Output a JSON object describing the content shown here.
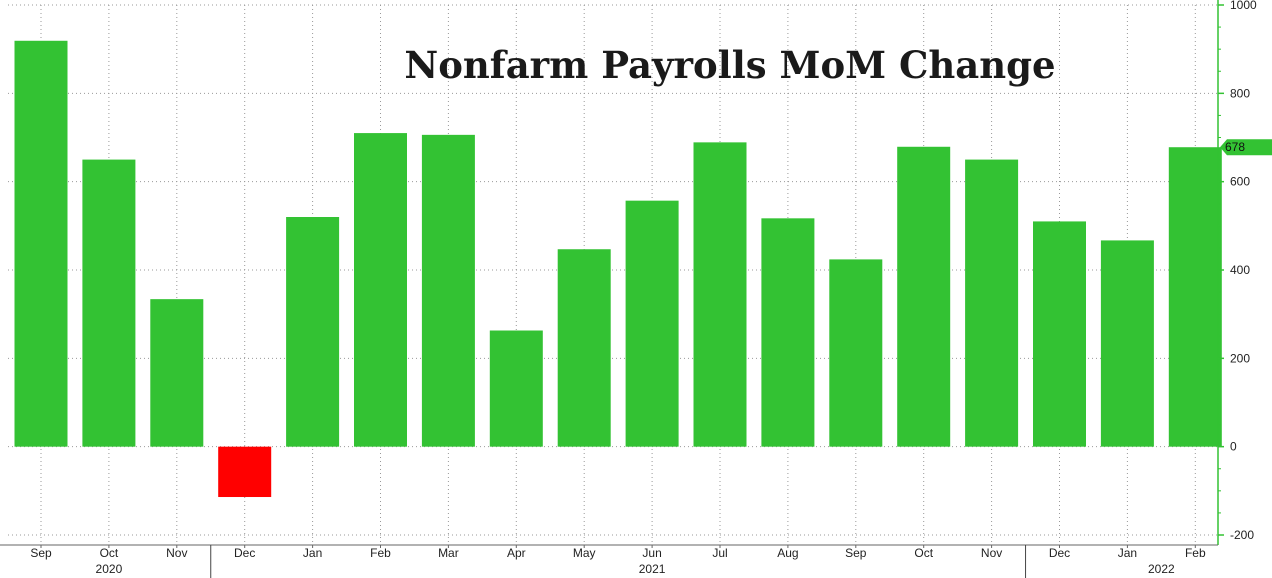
{
  "chart_data": {
    "type": "bar",
    "title": "Nonfarm Payrolls MoM Change",
    "xlabel": "",
    "ylabel": "",
    "categories": [
      "Sep",
      "Oct",
      "Nov",
      "Dec",
      "Jan",
      "Feb",
      "Mar",
      "Apr",
      "May",
      "Jun",
      "Jul",
      "Aug",
      "Sep",
      "Oct",
      "Nov",
      "Dec",
      "Jan",
      "Feb"
    ],
    "values": [
      919,
      650,
      334,
      -114,
      520,
      710,
      706,
      263,
      447,
      557,
      689,
      517,
      424,
      679,
      650,
      510,
      467,
      678
    ],
    "ylim": [
      -200,
      1000
    ],
    "yticks": [
      -200,
      0,
      200,
      400,
      600,
      800,
      1000
    ],
    "years": [
      {
        "label": "2020",
        "center_index": 1
      },
      {
        "label": "2021",
        "center_index": 9
      },
      {
        "label": "2022",
        "center_index": 16.5
      }
    ],
    "year_boundaries_after_index": [
      2.5,
      14.5
    ],
    "last_value_label": "678",
    "grid": true,
    "axis_side": "right",
    "colors": {
      "positive": "#33c233",
      "negative": "#ff0000",
      "axis": "#33c233",
      "grid": "#999999",
      "label_tag": "#33c233"
    }
  }
}
